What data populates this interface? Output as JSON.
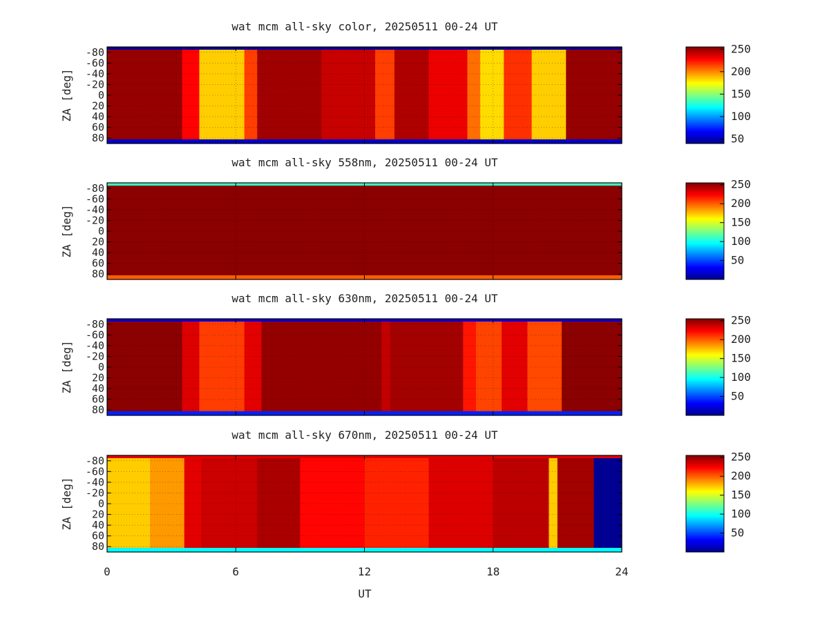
{
  "figure": {
    "xlabel": "UT",
    "ylabel": "ZA [deg]"
  },
  "chart_data": [
    {
      "type": "heatmap",
      "title": "wat mcm all-sky color, 20250511 00-24 UT",
      "xlabel": "",
      "ylabel": "ZA [deg]",
      "xlim": [
        0,
        24
      ],
      "ylim": [
        -90,
        90
      ],
      "x_ticks": [
        "0",
        "6",
        "12",
        "18",
        "24"
      ],
      "y_ticks": [
        "-80",
        "-60",
        "-40",
        "-20",
        "0",
        "20",
        "40",
        "60",
        "80"
      ],
      "grid": true,
      "colorbar": {
        "ticks": [
          "50",
          "100",
          "150",
          "200",
          "250"
        ],
        "range": [
          40,
          255
        ],
        "colormap": "jet"
      },
      "columns": [
        {
          "x0": 0.0,
          "x1": 3.5,
          "v": 250
        },
        {
          "x0": 3.5,
          "x1": 4.3,
          "v": 228
        },
        {
          "x0": 4.3,
          "x1": 6.4,
          "v": 185
        },
        {
          "x0": 6.4,
          "x1": 7.0,
          "v": 215
        },
        {
          "x0": 7.0,
          "x1": 10.0,
          "v": 248
        },
        {
          "x0": 10.0,
          "x1": 12.5,
          "v": 240
        },
        {
          "x0": 12.5,
          "x1": 13.4,
          "v": 215
        },
        {
          "x0": 13.4,
          "x1": 15.0,
          "v": 245
        },
        {
          "x0": 15.0,
          "x1": 16.8,
          "v": 232
        },
        {
          "x0": 16.8,
          "x1": 17.4,
          "v": 205
        },
        {
          "x0": 17.4,
          "x1": 18.5,
          "v": 182
        },
        {
          "x0": 18.5,
          "x1": 19.8,
          "v": 218
        },
        {
          "x0": 19.8,
          "x1": 21.4,
          "v": 185
        },
        {
          "x0": 21.4,
          "x1": 24.0,
          "v": 250
        }
      ],
      "edge": {
        "top": 45,
        "bottom": 55
      }
    },
    {
      "type": "heatmap",
      "title": "wat mcm all-sky 558nm, 20250511 00-24 UT",
      "xlabel": "",
      "ylabel": "ZA [deg]",
      "xlim": [
        0,
        24
      ],
      "ylim": [
        -90,
        90
      ],
      "x_ticks": [
        "0",
        "6",
        "12",
        "18",
        "24"
      ],
      "y_ticks": [
        "-80",
        "-60",
        "-40",
        "-20",
        "0",
        "20",
        "40",
        "60",
        "80"
      ],
      "grid": true,
      "colorbar": {
        "ticks": [
          "50",
          "100",
          "150",
          "200",
          "250"
        ],
        "range": [
          0,
          255
        ],
        "colormap": "jet"
      },
      "columns": [
        {
          "x0": 0.0,
          "x1": 24.0,
          "v": 252
        }
      ],
      "edge": {
        "top": 110,
        "bottom": 200
      }
    },
    {
      "type": "heatmap",
      "title": "wat mcm all-sky 630nm, 20250511 00-24 UT",
      "xlabel": "",
      "ylabel": "ZA [deg]",
      "xlim": [
        0,
        24
      ],
      "ylim": [
        -90,
        90
      ],
      "x_ticks": [
        "0",
        "6",
        "12",
        "18",
        "24"
      ],
      "y_ticks": [
        "-80",
        "-60",
        "-40",
        "-20",
        "0",
        "20",
        "40",
        "60",
        "80"
      ],
      "grid": true,
      "colorbar": {
        "ticks": [
          "50",
          "100",
          "150",
          "200",
          "250"
        ],
        "range": [
          0,
          255
        ],
        "colormap": "jet"
      },
      "columns": [
        {
          "x0": 0.0,
          "x1": 3.5,
          "v": 252
        },
        {
          "x0": 3.5,
          "x1": 4.3,
          "v": 232
        },
        {
          "x0": 4.3,
          "x1": 6.4,
          "v": 208
        },
        {
          "x0": 6.4,
          "x1": 7.2,
          "v": 230
        },
        {
          "x0": 7.2,
          "x1": 12.8,
          "v": 250
        },
        {
          "x0": 12.8,
          "x1": 13.2,
          "v": 238
        },
        {
          "x0": 13.2,
          "x1": 16.6,
          "v": 246
        },
        {
          "x0": 16.6,
          "x1": 17.2,
          "v": 218
        },
        {
          "x0": 17.2,
          "x1": 18.4,
          "v": 206
        },
        {
          "x0": 18.4,
          "x1": 19.6,
          "v": 230
        },
        {
          "x0": 19.6,
          "x1": 21.2,
          "v": 205
        },
        {
          "x0": 21.2,
          "x1": 24.0,
          "v": 252
        }
      ],
      "edge": {
        "top": 20,
        "bottom": 40
      }
    },
    {
      "type": "heatmap",
      "title": "wat mcm all-sky 670nm, 20250511 00-24 UT",
      "xlabel": "UT",
      "ylabel": "ZA [deg]",
      "xlim": [
        0,
        24
      ],
      "ylim": [
        -90,
        90
      ],
      "x_ticks": [
        "0",
        "6",
        "12",
        "18",
        "24"
      ],
      "y_ticks": [
        "-80",
        "-60",
        "-40",
        "-20",
        "0",
        "20",
        "40",
        "60",
        "80"
      ],
      "grid": true,
      "colorbar": {
        "ticks": [
          "50",
          "100",
          "150",
          "200",
          "250"
        ],
        "range": [
          0,
          255
        ],
        "colormap": "jet"
      },
      "columns": [
        {
          "x0": 0.0,
          "x1": 2.0,
          "v": 172
        },
        {
          "x0": 2.0,
          "x1": 3.6,
          "v": 185
        },
        {
          "x0": 3.6,
          "x1": 4.4,
          "v": 230
        },
        {
          "x0": 4.4,
          "x1": 7.0,
          "v": 236
        },
        {
          "x0": 7.0,
          "x1": 9.0,
          "v": 244
        },
        {
          "x0": 9.0,
          "x1": 12.0,
          "v": 222
        },
        {
          "x0": 12.0,
          "x1": 15.0,
          "v": 215
        },
        {
          "x0": 15.0,
          "x1": 18.0,
          "v": 232
        },
        {
          "x0": 18.0,
          "x1": 20.6,
          "v": 240
        },
        {
          "x0": 20.6,
          "x1": 21.0,
          "v": 172
        },
        {
          "x0": 21.0,
          "x1": 22.7,
          "v": 246
        },
        {
          "x0": 22.7,
          "x1": 24.0,
          "v": 5
        }
      ],
      "edge": {
        "top": 230,
        "bottom": 95
      }
    }
  ]
}
